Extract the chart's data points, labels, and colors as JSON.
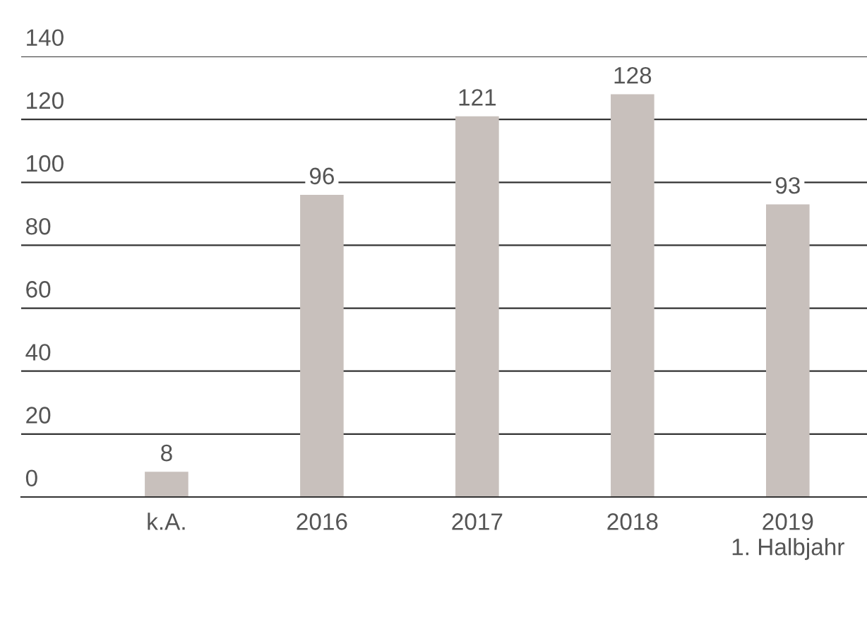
{
  "chart_data": {
    "type": "bar",
    "categories": [
      "k.A.",
      "2016",
      "2017",
      "2018",
      "2019\n1. Halbjahr"
    ],
    "values": [
      8,
      96,
      121,
      128,
      93
    ],
    "color": "#c8c0bc",
    "ylim": [
      0,
      140
    ],
    "yticks": [
      0,
      20,
      40,
      60,
      80,
      100,
      120,
      140
    ],
    "grid": "y",
    "data_labels": true
  }
}
